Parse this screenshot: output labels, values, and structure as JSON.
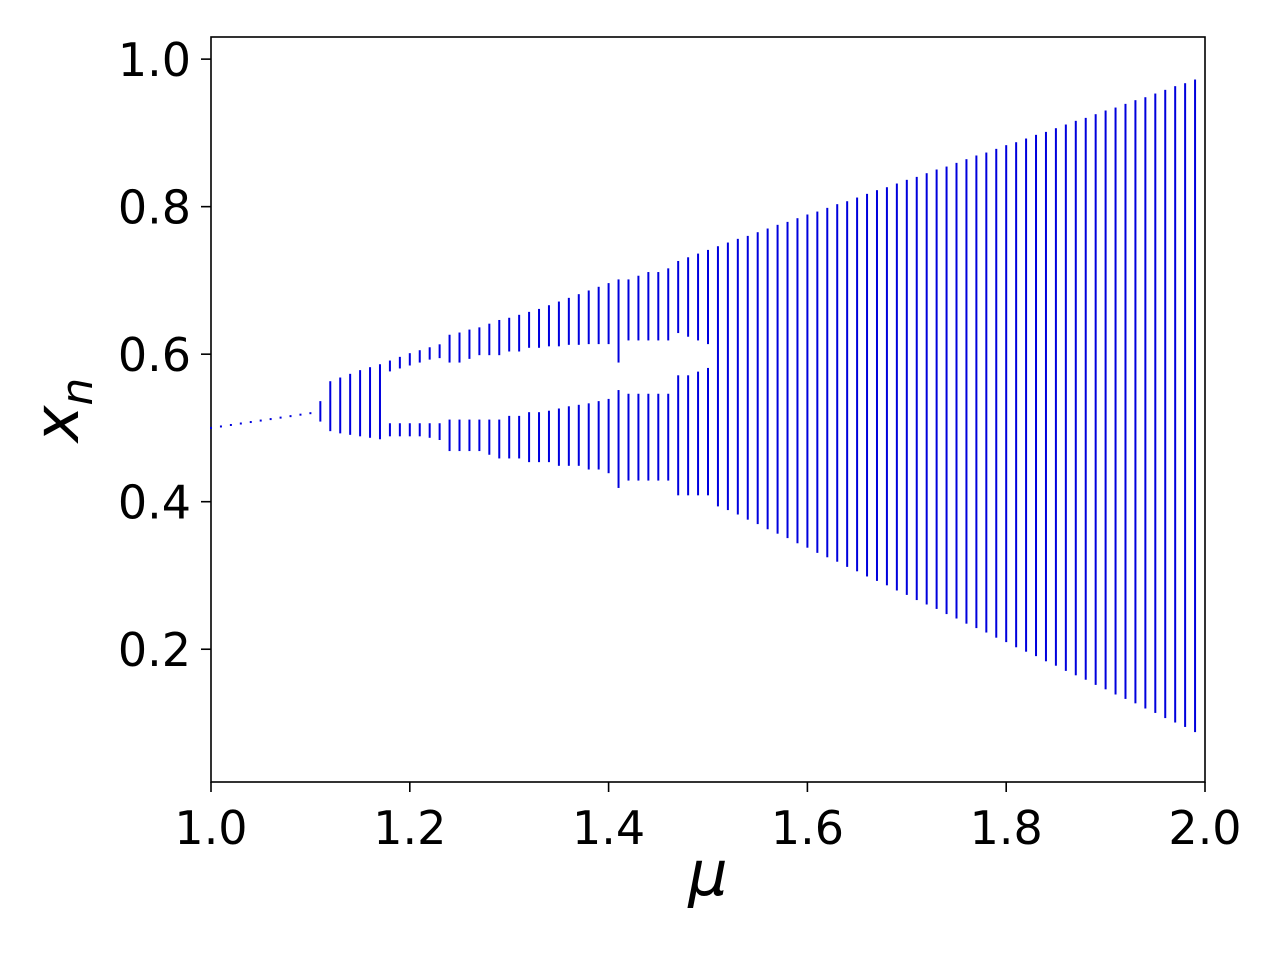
{
  "chart_data": {
    "type": "bifurcation",
    "x_label": "μ",
    "y_label": "x",
    "y_label_sub": "n",
    "color": "#0000dd",
    "xlim": [
      1,
      2
    ],
    "ylim": [
      0.02,
      1.03
    ],
    "xticks": [
      {
        "value": 1,
        "label": "1.0"
      },
      1.2,
      1.4,
      1.6,
      1.8,
      {
        "value": 2,
        "label": "2.0"
      }
    ],
    "yticks": [
      0.2,
      0.4,
      0.6,
      0.8,
      {
        "value": 1,
        "label": "1.0"
      }
    ],
    "x": [
      1,
      1.01,
      1.02,
      1.03,
      1.04,
      1.05,
      1.06,
      1.07,
      1.08,
      1.09,
      1.1,
      1.11,
      1.12,
      1.13,
      1.14,
      1.15,
      1.16,
      1.17,
      1.18,
      1.19,
      1.2,
      1.21,
      1.22,
      1.23,
      1.24,
      1.25,
      1.26,
      1.27,
      1.28,
      1.29,
      1.3,
      1.31,
      1.32,
      1.33,
      1.34,
      1.35,
      1.36,
      1.37,
      1.38,
      1.39,
      1.4,
      1.41,
      1.42,
      1.43,
      1.44,
      1.45,
      1.46,
      1.47,
      1.48,
      1.49,
      1.5,
      1.51,
      1.52,
      1.53,
      1.54,
      1.55,
      1.56,
      1.57,
      1.58,
      1.59,
      1.6,
      1.61,
      1.62,
      1.63,
      1.64,
      1.65,
      1.66,
      1.67,
      1.68,
      1.69,
      1.7,
      1.71,
      1.72,
      1.73,
      1.74,
      1.75,
      1.76,
      1.77,
      1.78,
      1.79,
      1.8,
      1.81,
      1.82,
      1.83,
      1.84,
      1.85,
      1.86,
      1.87,
      1.88,
      1.89,
      1.9,
      1.91,
      1.92,
      1.93,
      1.94,
      1.95,
      1.96,
      1.97,
      1.98,
      1.99
    ],
    "lower_band": {
      "low": [
        0.5,
        0.502,
        0.504,
        0.506,
        0.508,
        0.51,
        0.512,
        0.514,
        0.516,
        0.518,
        0.52,
        0.51,
        0.497,
        0.494,
        0.492,
        0.49,
        0.488,
        0.486,
        0.49,
        0.49,
        0.49,
        0.49,
        0.488,
        0.485,
        0.47,
        0.47,
        0.47,
        0.47,
        0.465,
        0.46,
        0.46,
        0.46,
        0.455,
        0.455,
        0.455,
        0.45,
        0.45,
        0.45,
        0.445,
        0.445,
        0.44,
        0.42,
        0.43,
        0.43,
        0.43,
        0.43,
        0.43,
        0.41,
        0.41,
        0.41,
        0.41,
        0.395,
        0.39,
        0.384,
        0.377,
        0.371,
        0.364,
        0.358,
        0.352,
        0.345,
        0.339,
        0.332,
        0.326,
        0.32,
        0.313,
        0.307,
        0.3,
        0.294,
        0.288,
        0.281,
        0.275,
        0.268,
        0.262,
        0.256,
        0.249,
        0.243,
        0.236,
        0.23,
        0.224,
        0.217,
        0.211,
        0.204,
        0.198,
        0.192,
        0.185,
        0.179,
        0.172,
        0.166,
        0.16,
        0.153,
        0.147,
        0.14,
        0.134,
        0.128,
        0.121,
        0.115,
        0.108,
        0.102,
        0.096,
        0.089
      ],
      "high": [
        0.5,
        0.502,
        0.504,
        0.506,
        0.508,
        0.51,
        0.512,
        0.514,
        0.516,
        0.518,
        0.52,
        0.535,
        0.562,
        0.567,
        0.572,
        0.577,
        0.581,
        0.585,
        0.505,
        0.505,
        0.505,
        0.505,
        0.505,
        0.505,
        0.51,
        0.51,
        0.51,
        0.51,
        0.51,
        0.51,
        0.515,
        0.515,
        0.52,
        0.52,
        0.522,
        0.525,
        0.528,
        0.53,
        0.532,
        0.535,
        0.538,
        0.55,
        0.545,
        0.545,
        0.545,
        0.545,
        0.545,
        0.57,
        0.57,
        0.575,
        0.58,
        0.745,
        0.75,
        0.755,
        0.759,
        0.764,
        0.769,
        0.774,
        0.778,
        0.783,
        0.788,
        0.792,
        0.797,
        0.802,
        0.806,
        0.811,
        0.816,
        0.821,
        0.825,
        0.83,
        0.835,
        0.839,
        0.844,
        0.849,
        0.853,
        0.858,
        0.863,
        0.868,
        0.872,
        0.877,
        0.882,
        0.886,
        0.891,
        0.896,
        0.9,
        0.905,
        0.91,
        0.915,
        0.919,
        0.924,
        0.929,
        0.933,
        0.938,
        0.943,
        0.947,
        0.952,
        0.957,
        0.962,
        0.966,
        0.971
      ]
    },
    "upper_band": {
      "low": [
        null,
        null,
        null,
        null,
        null,
        null,
        null,
        null,
        null,
        null,
        null,
        null,
        null,
        null,
        null,
        null,
        null,
        null,
        0.578,
        0.582,
        0.586,
        0.59,
        0.594,
        0.596,
        0.59,
        0.59,
        0.595,
        0.6,
        0.6,
        0.6,
        0.605,
        0.605,
        0.61,
        0.61,
        0.612,
        0.612,
        0.614,
        0.614,
        0.615,
        0.615,
        0.615,
        0.59,
        0.62,
        0.62,
        0.62,
        0.62,
        0.62,
        0.63,
        0.625,
        0.62,
        0.615,
        null,
        null,
        null,
        null,
        null,
        null,
        null,
        null,
        null,
        null,
        null,
        null,
        null,
        null,
        null,
        null,
        null,
        null,
        null,
        null,
        null,
        null,
        null,
        null,
        null,
        null,
        null,
        null,
        null,
        null,
        null,
        null,
        null,
        null,
        null,
        null,
        null,
        null,
        null,
        null,
        null,
        null,
        null,
        null,
        null,
        null,
        null,
        null,
        null
      ],
      "high": [
        null,
        null,
        null,
        null,
        null,
        null,
        null,
        null,
        null,
        null,
        null,
        null,
        null,
        null,
        null,
        null,
        null,
        null,
        0.59,
        0.595,
        0.6,
        0.604,
        0.608,
        0.612,
        0.625,
        0.628,
        0.632,
        0.635,
        0.64,
        0.645,
        0.648,
        0.652,
        0.656,
        0.66,
        0.665,
        0.67,
        0.675,
        0.68,
        0.685,
        0.69,
        0.695,
        0.7,
        0.7,
        0.705,
        0.71,
        0.71,
        0.715,
        0.725,
        0.73,
        0.735,
        0.74,
        null,
        null,
        null,
        null,
        null,
        null,
        null,
        null,
        null,
        null,
        null,
        null,
        null,
        null,
        null,
        null,
        null,
        null,
        null,
        null,
        null,
        null,
        null,
        null,
        null,
        null,
        null,
        null,
        null,
        null,
        null,
        null,
        null,
        null,
        null,
        null,
        null,
        null,
        null,
        null,
        null,
        null,
        null,
        null,
        null,
        null,
        null,
        null,
        null
      ]
    }
  }
}
